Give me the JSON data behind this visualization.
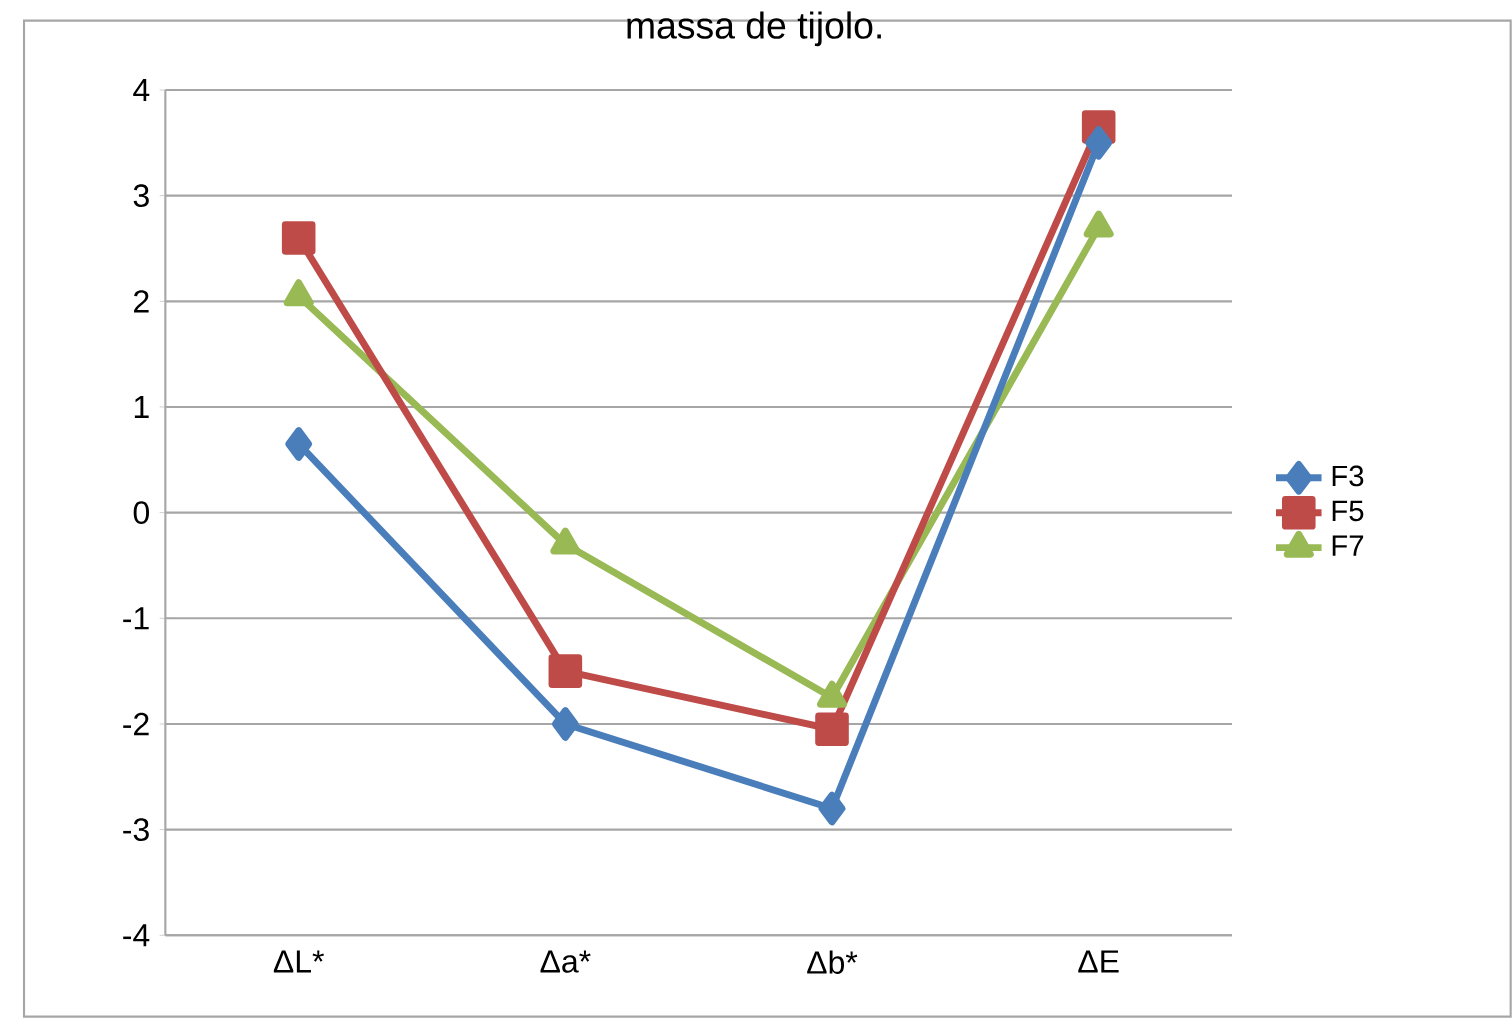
{
  "chart_data": {
    "type": "line",
    "title": "massa de tijolo.",
    "categories": [
      "ΔL*",
      "Δa*",
      "Δb*",
      "ΔE"
    ],
    "series": [
      {
        "name": "F3",
        "color": "#4a7ebb",
        "marker": "diamond",
        "values": [
          0.65,
          -2.0,
          -2.8,
          3.5
        ]
      },
      {
        "name": "F5",
        "color": "#be4b48",
        "marker": "square",
        "values": [
          2.6,
          -1.5,
          -2.05,
          3.65
        ]
      },
      {
        "name": "F7",
        "color": "#98b954",
        "marker": "triangle",
        "values": [
          2.05,
          -0.3,
          -1.75,
          2.7
        ]
      }
    ],
    "ylim": [
      -4,
      4
    ],
    "yticks": [
      {
        "value": -4,
        "label": "-4"
      },
      {
        "value": -3,
        "label": "-3"
      },
      {
        "value": -2,
        "label": "-2"
      },
      {
        "value": -1,
        "label": "-1"
      },
      0,
      1,
      2,
      3,
      4
    ],
    "grid": "y",
    "legend": "right",
    "line_style": "solid"
  }
}
